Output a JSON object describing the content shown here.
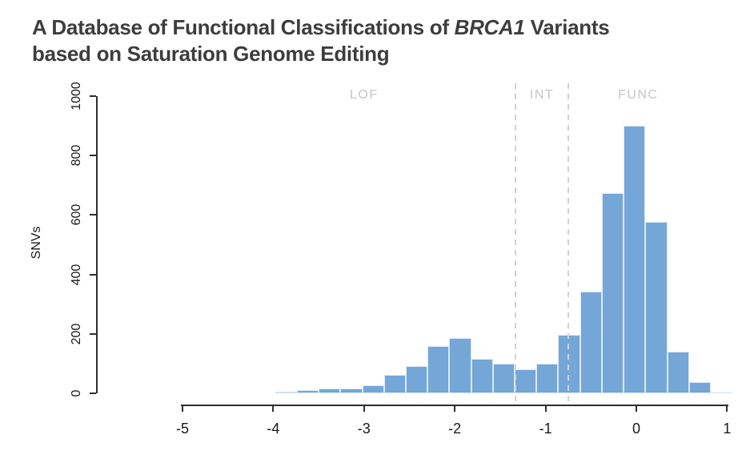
{
  "title": {
    "text_before_italic": "A Database of Functional Classifications of ",
    "italic_text": "BRCA1",
    "text_after_italic": " Variants",
    "line2": "based on Saturation Genome Editing"
  },
  "colors": {
    "bar_fill": "#74a7d8",
    "bar_border": "#dce9f6",
    "bar_muted_fill": "#cfe1f2",
    "bar_muted_border": "#e9f1fa",
    "threshold_line": "#d2d2d2",
    "region_label": "#c6c6c6",
    "axis": "#2e2e2e",
    "title_text": "#3d3d3d"
  },
  "chart_data": {
    "type": "bar",
    "subtype": "histogram",
    "title": "",
    "xlabel": "",
    "ylabel": "SNVs",
    "xlim": [
      -5,
      1
    ],
    "ylim": [
      0,
      1000
    ],
    "grid": false,
    "legend": "none",
    "x_ticks": [
      {
        "value": -5,
        "label": "-5"
      },
      {
        "value": -4,
        "label": "-4"
      },
      {
        "value": -3,
        "label": "-3"
      },
      {
        "value": -2,
        "label": "-2"
      },
      {
        "value": -1,
        "label": "-1"
      },
      {
        "value": 0,
        "label": "0"
      },
      {
        "value": 1,
        "label": "1"
      }
    ],
    "y_ticks": [
      {
        "value": 0,
        "label": "0"
      },
      {
        "value": 200,
        "label": "200"
      },
      {
        "value": 400,
        "label": "400"
      },
      {
        "value": 600,
        "label": "600"
      },
      {
        "value": 800,
        "label": "800"
      },
      {
        "value": 1000,
        "label": "1000"
      }
    ],
    "thresholds": [
      {
        "name": "lof-int-threshold",
        "x": -1.328
      },
      {
        "name": "int-func-threshold",
        "x": -0.748
      }
    ],
    "regions": [
      {
        "name": "lof",
        "label": "LOF",
        "x": -3.0
      },
      {
        "name": "int",
        "label": "INT",
        "x": -1.04
      },
      {
        "name": "func",
        "label": "FUNC",
        "x": 0.02
      }
    ],
    "bins": [
      {
        "x0": -3.98,
        "x1": -3.74,
        "count": 6,
        "muted": true
      },
      {
        "x0": -3.74,
        "x1": -3.5,
        "count": 12,
        "muted": false
      },
      {
        "x0": -3.5,
        "x1": -3.26,
        "count": 17,
        "muted": false
      },
      {
        "x0": -3.26,
        "x1": -3.02,
        "count": 15,
        "muted": false
      },
      {
        "x0": -3.02,
        "x1": -2.78,
        "count": 27,
        "muted": false
      },
      {
        "x0": -2.78,
        "x1": -2.54,
        "count": 61,
        "muted": false
      },
      {
        "x0": -2.54,
        "x1": -2.3,
        "count": 92,
        "muted": false
      },
      {
        "x0": -2.3,
        "x1": -2.06,
        "count": 158,
        "muted": false
      },
      {
        "x0": -2.06,
        "x1": -1.82,
        "count": 187,
        "muted": false
      },
      {
        "x0": -1.82,
        "x1": -1.58,
        "count": 117,
        "muted": false
      },
      {
        "x0": -1.58,
        "x1": -1.34,
        "count": 101,
        "muted": false
      },
      {
        "x0": -1.34,
        "x1": -1.1,
        "count": 80,
        "muted": false
      },
      {
        "x0": -1.1,
        "x1": -0.86,
        "count": 100,
        "muted": false
      },
      {
        "x0": -0.86,
        "x1": -0.62,
        "count": 197,
        "muted": false
      },
      {
        "x0": -0.62,
        "x1": -0.38,
        "count": 342,
        "muted": false
      },
      {
        "x0": -0.38,
        "x1": -0.14,
        "count": 675,
        "muted": false
      },
      {
        "x0": -0.14,
        "x1": 0.1,
        "count": 900,
        "muted": false
      },
      {
        "x0": 0.1,
        "x1": 0.34,
        "count": 578,
        "muted": false
      },
      {
        "x0": 0.34,
        "x1": 0.58,
        "count": 140,
        "muted": false
      },
      {
        "x0": 0.58,
        "x1": 0.82,
        "count": 37,
        "muted": false
      },
      {
        "x0": 0.82,
        "x1": 1.06,
        "count": 4,
        "muted": true
      }
    ]
  }
}
